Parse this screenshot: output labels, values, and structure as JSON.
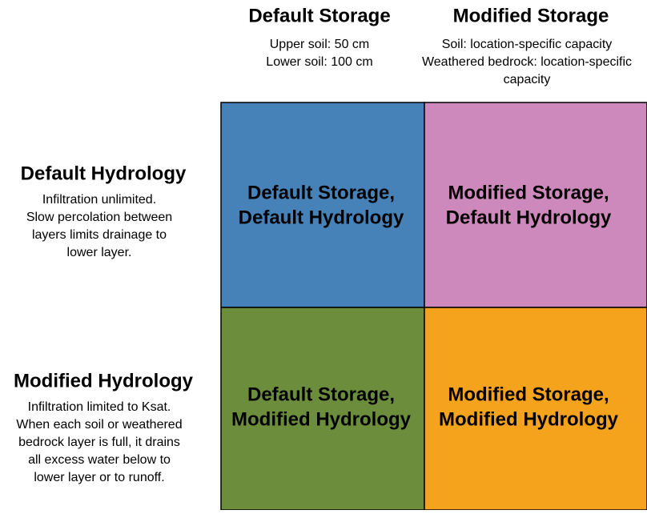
{
  "columns": [
    {
      "title": "Default Storage",
      "lines": [
        "Upper soil: 50 cm",
        "Lower soil: 100 cm"
      ]
    },
    {
      "title": "Modified Storage",
      "lines": [
        "Soil: location-specific capacity",
        "Weathered bedrock: location-specific",
        "capacity"
      ]
    }
  ],
  "rows": [
    {
      "title": "Default Hydrology",
      "lines": [
        "Infiltration unlimited.",
        "Slow percolation between",
        "layers limits drainage to",
        "lower layer."
      ]
    },
    {
      "title": "Modified Hydrology",
      "lines": [
        "Infiltration limited to Ksat.",
        "When each soil or weathered",
        "bedrock layer is full, it drains",
        "all excess water below to",
        "lower layer or to runoff."
      ]
    }
  ],
  "cells": [
    [
      [
        "Default Storage,",
        "Default Hydrology"
      ],
      [
        "Modified Storage,",
        "Default Hydrology"
      ]
    ],
    [
      [
        "Default Storage,",
        "Modified Hydrology"
      ],
      [
        "Modified Storage,",
        "Modified Hydrology"
      ]
    ]
  ]
}
